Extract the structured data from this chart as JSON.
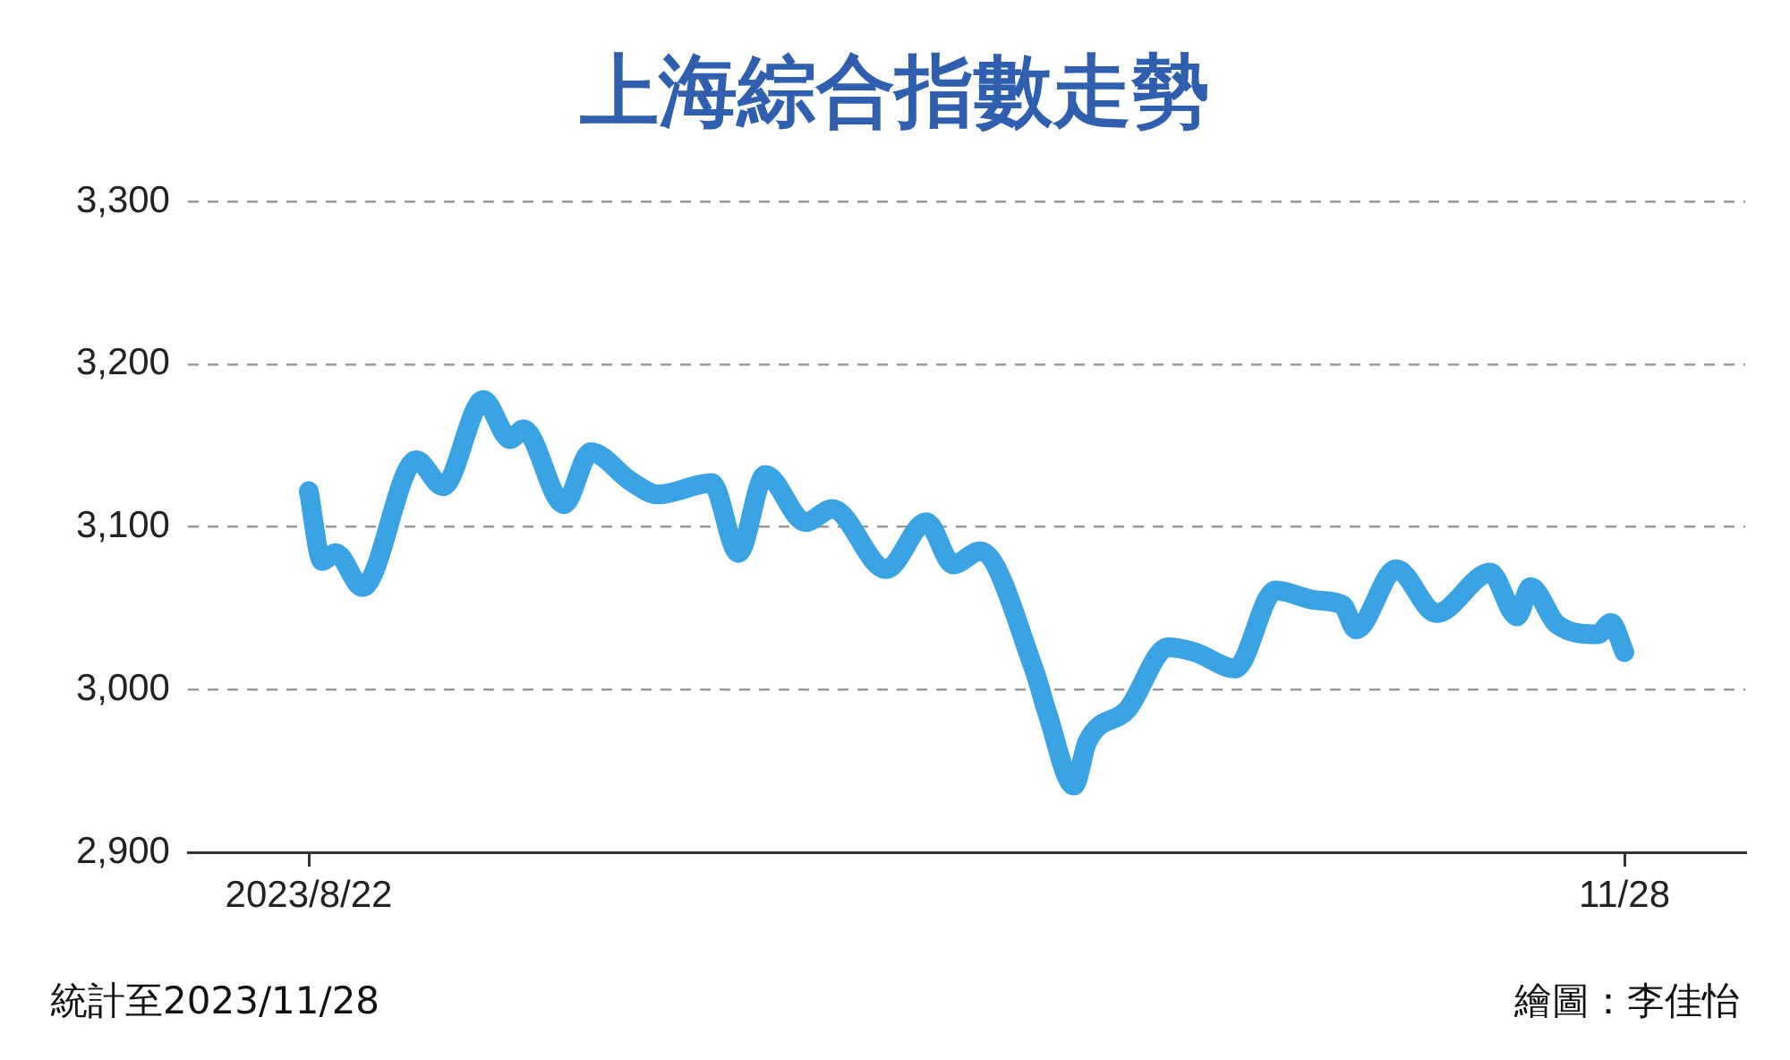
{
  "chart_data": {
    "type": "line",
    "title": "上海綜合指數走勢",
    "x": [
      "2023-08-22",
      "2023-08-23",
      "2023-08-24",
      "2023-08-26",
      "2023-08-30",
      "2023-09-01",
      "2023-09-04",
      "2023-09-06",
      "2023-09-07",
      "2023-09-10",
      "2023-09-12",
      "2023-09-15",
      "2023-09-17",
      "2023-09-21",
      "2023-09-23",
      "2023-09-25",
      "2023-09-28",
      "2023-09-30",
      "2023-10-04",
      "2023-10-07",
      "2023-10-09",
      "2023-10-11",
      "2023-10-15",
      "2023-10-16",
      "2023-10-18",
      "2023-10-19",
      "2023-10-22",
      "2023-10-25",
      "2023-10-27",
      "2023-10-30",
      "2023-11-02",
      "2023-11-05",
      "2023-11-07",
      "2023-11-08",
      "2023-11-11",
      "2023-11-14",
      "2023-11-18",
      "2023-11-20",
      "2023-11-21",
      "2023-11-23",
      "2023-11-26",
      "2023-11-27",
      "2023-11-28"
    ],
    "series": [
      {
        "color": "#3aa3e3",
        "values": [
          3122,
          3079,
          3084,
          3063,
          3141,
          3125,
          3178,
          3154,
          3160,
          3114,
          3146,
          3128,
          3120,
          3127,
          3084,
          3132,
          3103,
          3111,
          3074,
          3103,
          3077,
          3085,
          3013,
          2986,
          2941,
          2968,
          2988,
          3026,
          3023,
          3013,
          3061,
          3055,
          3052,
          3037,
          3074,
          3047,
          3072,
          3045,
          3063,
          3040,
          3034,
          3041,
          3023
        ]
      }
    ],
    "xlim": [
      "2023-08-13",
      "2023-12-07"
    ],
    "xticks": [
      {
        "value": "2023-08-22",
        "label": "2023/8/22"
      },
      {
        "value": "2023-11-28",
        "label": "11/28"
      }
    ],
    "ylim": [
      2900,
      3300
    ],
    "yticks": [
      {
        "value": 2900,
        "label": "2,900"
      },
      {
        "value": 3000,
        "label": "3,000"
      },
      {
        "value": 3100,
        "label": "3,100"
      },
      {
        "value": 3200,
        "label": "3,200"
      },
      {
        "value": 3300,
        "label": "3,300"
      }
    ],
    "grid": "y",
    "legend": false,
    "marker": "none",
    "line_style": "solid",
    "annotations": [
      "統計至2023/11/28",
      "繪圖：李佳怡"
    ]
  }
}
